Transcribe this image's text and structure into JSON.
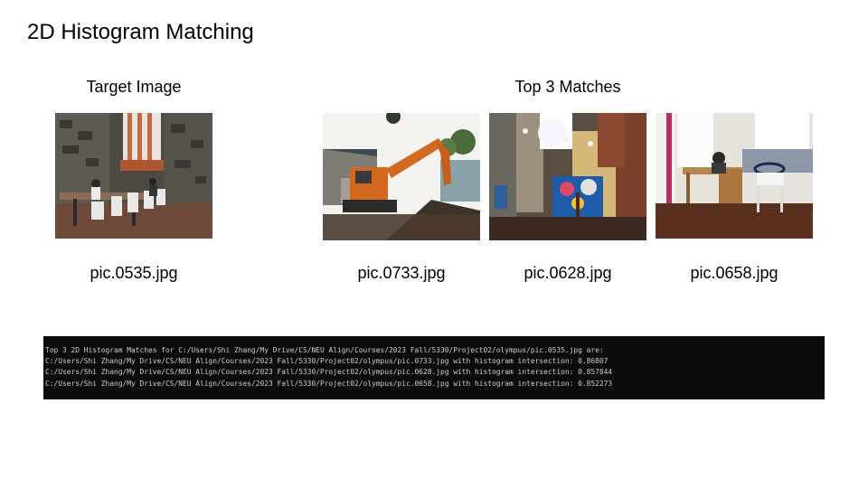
{
  "slide": {
    "title": "2D Histogram Matching",
    "target_label": "Target Image",
    "matches_label": "Top 3 Matches"
  },
  "target": {
    "filename": "pic.0535.jpg"
  },
  "matches": [
    {
      "filename": "pic.0733.jpg"
    },
    {
      "filename": "pic.0628.jpg"
    },
    {
      "filename": "pic.0658.jpg"
    }
  ],
  "console": {
    "lines": [
      "Top 3 2D Histogram Matches for C:/Users/Shi Zhang/My Drive/CS/NEU Align/Courses/2023 Fall/5330/Project02/olympus/pic.0535.jpg are:",
      "C:/Users/Shi Zhang/My Drive/CS/NEU Align/Courses/2023 Fall/5330/Project02/olympus/pic.0733.jpg with histogram intersection: 0.86807",
      "C:/Users/Shi Zhang/My Drive/CS/NEU Align/Courses/2023 Fall/5330/Project02/olympus/pic.0628.jpg with histogram intersection: 0.857844",
      "C:/Users/Shi Zhang/My Drive/CS/NEU Align/Courses/2023 Fall/5330/Project02/olympus/pic.0658.jpg with histogram intersection: 0.852273"
    ]
  }
}
